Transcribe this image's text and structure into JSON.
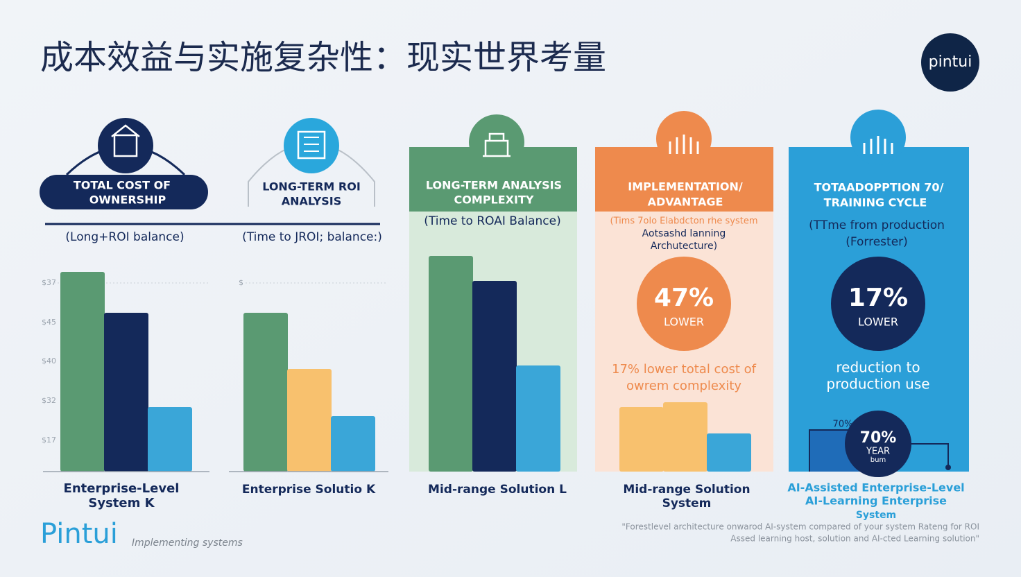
{
  "header": {
    "title": "成本效益与实施复杂性：现实世界考量",
    "logo": "pintui"
  },
  "scale": {
    "ylim": [
      0,
      320
    ]
  },
  "panels": [
    {
      "heading": [
        "TOTAL COST OF",
        "OWNERSHIP"
      ],
      "subtitle": [
        "(Long+ROI balance)"
      ],
      "axis_labels": [
        "$37",
        "$45",
        "$40",
        "$32",
        "$17"
      ],
      "bars": [
        {
          "value": 288,
          "color": "#5a9a72"
        },
        {
          "value": 229,
          "color": "#14295a"
        },
        {
          "value": 93,
          "color": "#3aa6d8"
        }
      ],
      "label": [
        "Enterprise-Level",
        "System K"
      ]
    },
    {
      "heading": [
        "LONG-TERM ROI",
        "ANALYSIS"
      ],
      "subtitle": [
        "(Time to JROI; balance:)"
      ],
      "axis_labels": [
        "$"
      ],
      "bars": [
        {
          "value": 229,
          "color": "#5a9a72"
        },
        {
          "value": 148,
          "color": "#f8c16e"
        },
        {
          "value": 80,
          "color": "#3aa6d8"
        }
      ],
      "label": [
        "Enterprise Solutio K"
      ]
    },
    {
      "heading": [
        "LONG-TERM ANALYSIS",
        "COMPLEXITY"
      ],
      "subtitle": [
        "(Time to ROAI  Balance)"
      ],
      "bars": [
        {
          "value": 311,
          "color": "#5a9a72"
        },
        {
          "value": 275,
          "color": "#14295a"
        },
        {
          "value": 153,
          "color": "#3aa6d8"
        }
      ],
      "label": [
        "Mid-range Solution L"
      ]
    },
    {
      "heading": [
        "IMPLEMENTATION/",
        "ADVANTAGE"
      ],
      "subtitle": [
        "(Tims 7olo Elabdcton rhe system",
        "Aotsashd lanning",
        "Archutecture)"
      ],
      "stat": {
        "value": "47%",
        "label": "LOWER"
      },
      "caption": [
        "17% lower total cost of",
        "owrem complexity"
      ],
      "bars": [
        {
          "value": 93,
          "color": "#f8c16e"
        },
        {
          "value": 100,
          "color": "#f8c16e"
        },
        {
          "value": 55,
          "color": "#3aa6d8"
        }
      ],
      "label": [
        "Mid-range Solution",
        "System"
      ]
    },
    {
      "heading": [
        "TOTAADOPPTION 70/",
        "TRAINING CYCLE"
      ],
      "subtitle": [
        "(TTme from production",
        "(Forrester)"
      ],
      "stat": {
        "value": "17%",
        "label": "LOWER"
      },
      "caption": [
        "reduction to",
        "production use"
      ],
      "badge": {
        "top": "70%",
        "value": "70%",
        "lines": [
          "YEAR",
          "bum"
        ]
      },
      "label": [
        "AI-Assisted Enterprise-Level",
        "AI-Learning Enterprise",
        "System"
      ]
    }
  ],
  "footer": {
    "brand": "Pintui",
    "tagline": "Implementing systems",
    "note": [
      "\"Forestlevel architecture onwarod AI-system compared of your system Rateng for ROI",
      "Assed learning host, solution and AI-cted Learning solution\""
    ]
  }
}
